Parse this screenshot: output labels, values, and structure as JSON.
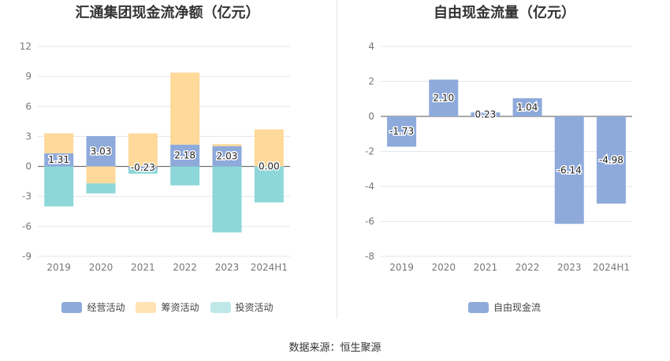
{
  "source": "数据来源：恒生聚源",
  "chart_data": [
    {
      "type": "bar",
      "stacked": true,
      "title": "汇通集团现金流净额（亿元）",
      "categories": [
        "2019",
        "2020",
        "2021",
        "2022",
        "2023",
        "2024H1"
      ],
      "y_ticks": [
        "12",
        "9",
        "6",
        "3",
        "0",
        "-3",
        "-6",
        "-9"
      ],
      "ylim": [
        -9,
        12
      ],
      "grid": true,
      "legend_position": "bottom",
      "series": [
        {
          "name": "经营活动",
          "color": "#8eaadb",
          "values": [
            1.31,
            3.03,
            -0.23,
            2.18,
            2.03,
            0.0
          ],
          "labels": [
            "1.31",
            "3.03",
            "-0.23",
            "2.18",
            "2.03",
            "0.00"
          ]
        },
        {
          "name": "筹资活动",
          "color": "#ffd99a",
          "values": [
            2.0,
            -1.7,
            3.3,
            7.2,
            0.2,
            3.7
          ]
        },
        {
          "name": "投资活动",
          "color": "#8dd7d9",
          "values": [
            -4.0,
            -1.0,
            -0.5,
            -1.9,
            -6.6,
            -3.6
          ]
        }
      ]
    },
    {
      "type": "bar",
      "title": "自由现金流量（亿元）",
      "categories": [
        "2019",
        "2020",
        "2021",
        "2022",
        "2023",
        "2024H1"
      ],
      "y_ticks": [
        "4",
        "2",
        "0",
        "-2",
        "-4",
        "-6",
        "-8"
      ],
      "ylim": [
        -8,
        4
      ],
      "grid": true,
      "legend_position": "bottom",
      "series": [
        {
          "name": "自由现金流",
          "color": "#8eaadb",
          "values": [
            -1.73,
            2.1,
            0.23,
            1.04,
            -6.14,
            -4.98
          ],
          "labels": [
            "-1.73",
            "2.10",
            "0.23",
            "1.04",
            "-6.14",
            "-4.98"
          ]
        }
      ]
    }
  ]
}
